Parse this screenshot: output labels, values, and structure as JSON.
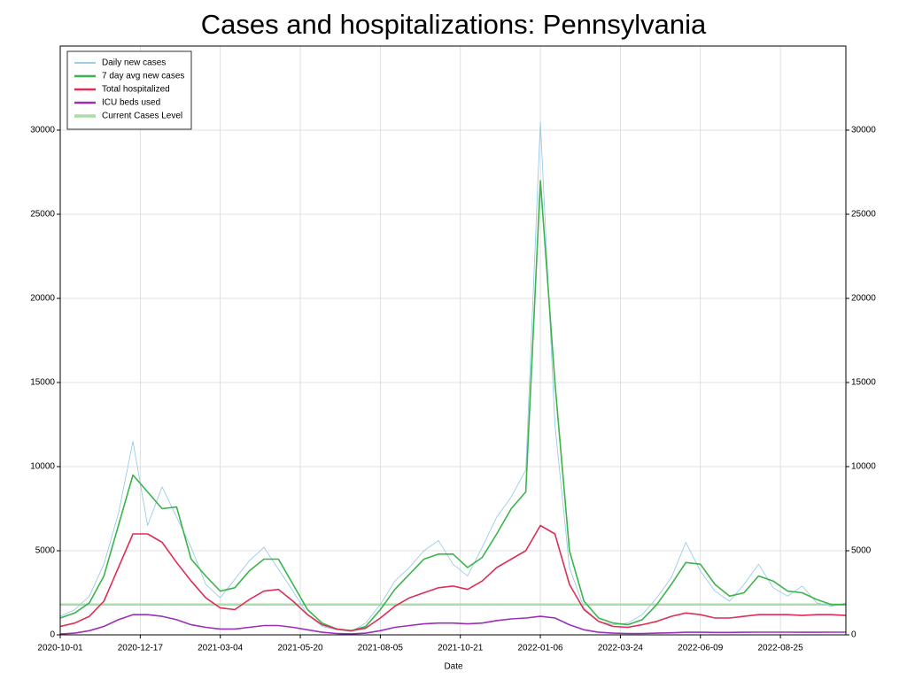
{
  "chart_data": {
    "type": "line",
    "title": "Cases and hospitalizations: Pennsylvania",
    "x_label": "Date",
    "x": [
      "2020-10-01",
      "2020-10-15",
      "2020-10-29",
      "2020-11-12",
      "2020-11-26",
      "2020-12-10",
      "2020-12-24",
      "2021-01-07",
      "2021-01-21",
      "2021-02-04",
      "2021-02-18",
      "2021-03-04",
      "2021-03-18",
      "2021-04-01",
      "2021-04-15",
      "2021-04-29",
      "2021-05-13",
      "2021-05-27",
      "2021-06-10",
      "2021-06-24",
      "2021-07-08",
      "2021-07-22",
      "2021-08-05",
      "2021-08-19",
      "2021-09-02",
      "2021-09-16",
      "2021-09-30",
      "2021-10-14",
      "2021-10-28",
      "2021-11-11",
      "2021-11-25",
      "2021-12-09",
      "2021-12-23",
      "2022-01-06",
      "2022-01-20",
      "2022-02-03",
      "2022-02-17",
      "2022-03-03",
      "2022-03-17",
      "2022-03-31",
      "2022-04-14",
      "2022-04-28",
      "2022-05-12",
      "2022-05-26",
      "2022-06-09",
      "2022-06-23",
      "2022-07-07",
      "2022-07-21",
      "2022-08-04",
      "2022-08-18",
      "2022-09-01",
      "2022-09-15",
      "2022-09-29",
      "2022-10-13",
      "2022-10-27"
    ],
    "series": [
      {
        "name": "Daily new cases",
        "color": "#8ec6e6",
        "width": 0.8,
        "values": [
          1100,
          1500,
          2300,
          4200,
          7200,
          11500,
          6500,
          8800,
          7000,
          5200,
          3000,
          2200,
          3300,
          4400,
          5200,
          3900,
          2600,
          1200,
          500,
          300,
          200,
          700,
          1800,
          3200,
          4000,
          5000,
          5600,
          4200,
          3500,
          5200,
          7000,
          8200,
          9800,
          30500,
          12500,
          4000,
          1600,
          800,
          600,
          700,
          1200,
          2200,
          3400,
          5500,
          3800,
          2600,
          2000,
          3000,
          4200,
          2800,
          2300,
          2900,
          1900,
          1700,
          1900
        ]
      },
      {
        "name": "7 day avg new cases",
        "color": "#3cb44b",
        "width": 1.6,
        "values": [
          1000,
          1300,
          1900,
          3500,
          6500,
          9500,
          8500,
          7500,
          7600,
          4500,
          3500,
          2600,
          2800,
          3800,
          4500,
          4500,
          3000,
          1500,
          700,
          350,
          250,
          500,
          1500,
          2700,
          3600,
          4500,
          4800,
          4800,
          4000,
          4600,
          6000,
          7500,
          8500,
          27000,
          15000,
          5000,
          2000,
          1000,
          700,
          600,
          900,
          1800,
          3000,
          4300,
          4200,
          3000,
          2300,
          2500,
          3500,
          3200,
          2600,
          2500,
          2100,
          1800,
          1800
        ]
      },
      {
        "name": "Total hospitalized",
        "color": "#dc2f55",
        "width": 1.6,
        "values": [
          500,
          700,
          1100,
          2000,
          4000,
          6000,
          6000,
          5500,
          4300,
          3200,
          2200,
          1600,
          1500,
          2100,
          2600,
          2700,
          2000,
          1200,
          600,
          350,
          250,
          400,
          1000,
          1700,
          2200,
          2500,
          2800,
          2900,
          2700,
          3200,
          4000,
          4500,
          5000,
          6500,
          6000,
          3000,
          1500,
          800,
          500,
          450,
          600,
          800,
          1100,
          1300,
          1200,
          1000,
          1000,
          1100,
          1200,
          1200,
          1200,
          1150,
          1200,
          1200,
          1150
        ]
      },
      {
        "name": "ICU beds used",
        "color": "#9b30b8",
        "width": 1.6,
        "values": [
          50,
          100,
          250,
          500,
          900,
          1200,
          1200,
          1100,
          900,
          600,
          450,
          350,
          350,
          450,
          550,
          550,
          450,
          300,
          150,
          80,
          60,
          100,
          250,
          450,
          550,
          650,
          700,
          700,
          650,
          700,
          850,
          950,
          1000,
          1100,
          1000,
          600,
          300,
          150,
          100,
          80,
          80,
          100,
          120,
          150,
          150,
          140,
          140,
          150,
          160,
          160,
          160,
          150,
          150,
          160,
          160
        ]
      }
    ],
    "hlines": [
      {
        "name": "Current Cases Level",
        "color": "#a8dca8",
        "value": 1800
      }
    ],
    "xlim": [
      "2020-10-01",
      "2022-10-27"
    ],
    "xticks": [
      "2020-10-01",
      "2020-12-17",
      "2021-03-04",
      "2021-05-20",
      "2021-08-05",
      "2021-10-21",
      "2022-01-06",
      "2022-03-24",
      "2022-06-09",
      "2022-08-25"
    ],
    "ylim": [
      0,
      35000
    ],
    "yticks": [
      0,
      5000,
      10000,
      15000,
      20000,
      25000,
      30000
    ],
    "y2lim": [
      0,
      35000
    ],
    "y2ticks": [
      0,
      5000,
      10000,
      15000,
      20000,
      25000,
      30000
    ],
    "grid": true,
    "legend": "upper left"
  }
}
